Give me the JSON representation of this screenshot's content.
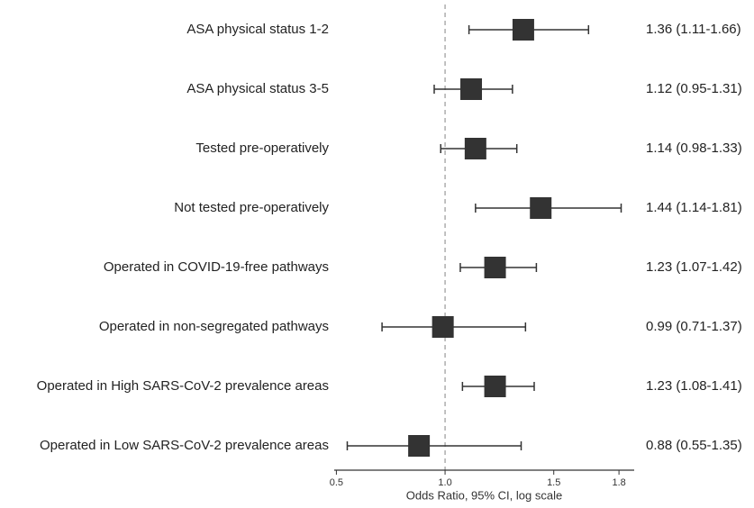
{
  "chart_data": {
    "type": "forest",
    "categories": [
      "ASA physical status 1-2",
      "ASA physical status 3-5",
      "Tested pre-operatively",
      "Not tested pre-operatively",
      "Operated in COVID-19-free pathways",
      "Operated in non-segregated pathways",
      "Operated in High SARS-CoV-2 prevalence areas",
      "Operated in Low SARS-CoV-2 prevalence areas"
    ],
    "values": [
      1.36,
      1.12,
      1.14,
      1.44,
      1.23,
      0.99,
      1.23,
      0.88
    ],
    "lower": [
      1.11,
      0.95,
      0.98,
      1.14,
      1.07,
      0.71,
      1.08,
      0.55
    ],
    "upper": [
      1.66,
      1.31,
      1.33,
      1.81,
      1.42,
      1.37,
      1.41,
      1.35
    ],
    "value_labels": [
      "1.36 (1.11-1.66)",
      "1.12 (0.95-1.31)",
      "1.14 (0.98-1.33)",
      "1.44 (1.14-1.81)",
      "1.23 (1.07-1.42)",
      "0.99 (0.71-1.37)",
      "1.23 (1.08-1.41)",
      "0.88 (0.55-1.35)"
    ],
    "xlim": [
      0.49,
      1.87
    ],
    "xticks": [
      0.5,
      {
        "value": 1,
        "label": "1.0"
      },
      1.5,
      1.8
    ],
    "xlabel": "Odds Ratio, 95% CI, log scale",
    "reference_line": 1,
    "color": "#333333"
  }
}
